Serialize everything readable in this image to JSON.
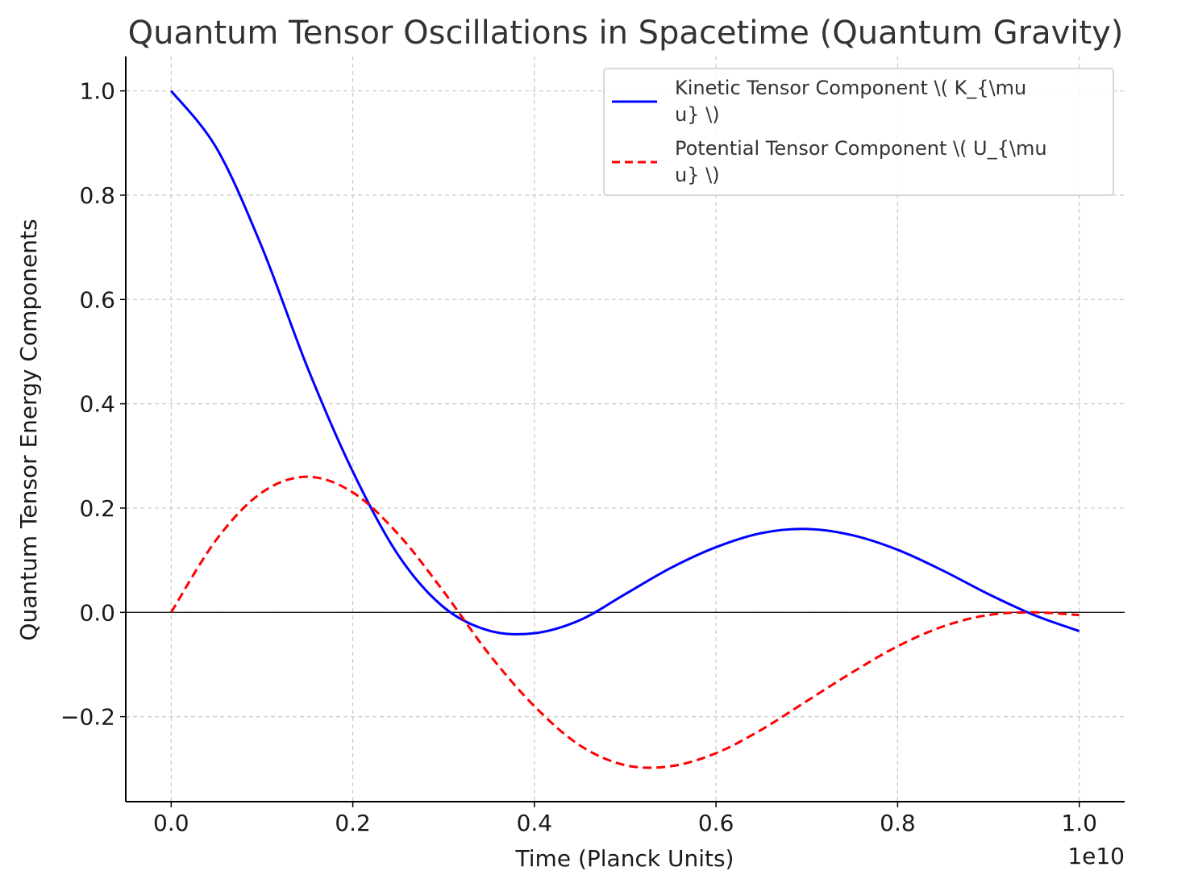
{
  "chart_data": {
    "type": "line",
    "title": "Quantum Tensor Oscillations in Spacetime (Quantum Gravity)",
    "xlabel": "Time (Planck Units)",
    "ylabel": "Quantum Tensor Energy Components",
    "x_offset_text": "1e10",
    "xlim": [
      -0.05,
      1.05
    ],
    "ylim": [
      -0.363,
      1.066
    ],
    "x_ticks": [
      0.0,
      0.2,
      0.4,
      0.6,
      0.8,
      1.0
    ],
    "x_tick_labels": [
      "0.0",
      "0.2",
      "0.4",
      "0.6",
      "0.8",
      "1.0"
    ],
    "y_ticks": [
      -0.2,
      0.0,
      0.2,
      0.4,
      0.6,
      0.8,
      1.0
    ],
    "y_tick_labels": [
      "−0.2",
      "0.0",
      "0.2",
      "0.4",
      "0.6",
      "0.8",
      "1.0"
    ],
    "grid": true,
    "legend_position": "upper-right",
    "zero_line": true,
    "series": [
      {
        "name": "Kinetic Tensor Component \\( K_{\\mu\nu} \\)",
        "legend_lines": [
          "Kinetic Tensor Component \\( K_{\\mu",
          "u} \\)"
        ],
        "color": "#0000ff",
        "style": "solid",
        "x": [
          0.0,
          0.05,
          0.1,
          0.15,
          0.2,
          0.25,
          0.3,
          0.35,
          0.4,
          0.45,
          0.5,
          0.55,
          0.6,
          0.65,
          0.7,
          0.75,
          0.8,
          0.85,
          0.9,
          0.95,
          1.0
        ],
        "y": [
          1.0,
          0.89,
          0.7,
          0.47,
          0.27,
          0.11,
          0.01,
          -0.035,
          -0.04,
          -0.015,
          0.035,
          0.085,
          0.125,
          0.152,
          0.16,
          0.148,
          0.12,
          0.08,
          0.035,
          -0.005,
          -0.036
        ]
      },
      {
        "name": "Potential Tensor Component \\( U_{\\mu\nu} \\)",
        "legend_lines": [
          "Potential Tensor Component \\( U_{\\mu",
          "u} \\)"
        ],
        "color": "#ff0000",
        "style": "dashed",
        "x": [
          0.0,
          0.05,
          0.1,
          0.15,
          0.2,
          0.25,
          0.3,
          0.35,
          0.4,
          0.45,
          0.5,
          0.55,
          0.6,
          0.65,
          0.7,
          0.75,
          0.8,
          0.85,
          0.9,
          0.95,
          1.0
        ],
        "y": [
          0.0,
          0.14,
          0.23,
          0.26,
          0.23,
          0.15,
          0.04,
          -0.08,
          -0.18,
          -0.255,
          -0.293,
          -0.295,
          -0.27,
          -0.225,
          -0.17,
          -0.115,
          -0.065,
          -0.027,
          -0.005,
          0.0,
          -0.005
        ]
      }
    ]
  }
}
